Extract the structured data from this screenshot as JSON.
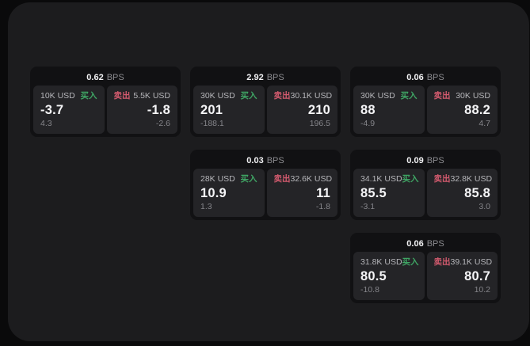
{
  "labels": {
    "bps_unit": "BPS",
    "buy": "买入",
    "sell": "卖出"
  },
  "colors": {
    "background": "#0a0a0b",
    "panel": "#1c1c1e",
    "card": "#111113",
    "subpanel": "#242427",
    "buy_accent": "#3fa564",
    "sell_accent": "#d25a6e",
    "value_text": "#f5f5f7",
    "muted_text": "#85858a"
  },
  "cards": [
    {
      "bps": "0.62",
      "buy": {
        "amount": "10K USD",
        "value": "-3.7",
        "sub": "4.3"
      },
      "sell": {
        "amount": "5.5K USD",
        "value": "-1.8",
        "sub": "-2.6"
      }
    },
    {
      "bps": "2.92",
      "buy": {
        "amount": "30K USD",
        "value": "201",
        "sub": "-188.1"
      },
      "sell": {
        "amount": "30.1K USD",
        "value": "210",
        "sub": "196.5"
      }
    },
    {
      "bps": "0.06",
      "buy": {
        "amount": "30K USD",
        "value": "88",
        "sub": "-4.9"
      },
      "sell": {
        "amount": "30K USD",
        "value": "88.2",
        "sub": "4.7"
      }
    },
    {
      "bps": "0.03",
      "buy": {
        "amount": "28K USD",
        "value": "10.9",
        "sub": "1.3"
      },
      "sell": {
        "amount": "32.6K USD",
        "value": "11",
        "sub": "-1.8"
      }
    },
    {
      "bps": "0.09",
      "buy": {
        "amount": "34.1K USD",
        "value": "85.5",
        "sub": "-3.1"
      },
      "sell": {
        "amount": "32.8K USD",
        "value": "85.8",
        "sub": "3.0"
      }
    },
    {
      "bps": "0.06",
      "buy": {
        "amount": "31.8K USD",
        "value": "80.5",
        "sub": "-10.8"
      },
      "sell": {
        "amount": "39.1K USD",
        "value": "80.7",
        "sub": "10.2"
      }
    }
  ]
}
